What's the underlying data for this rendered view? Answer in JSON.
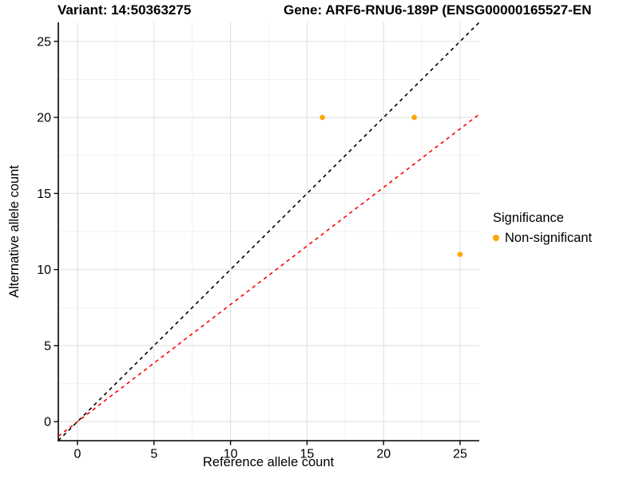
{
  "header": {
    "title_left": "Variant: 14:50363275",
    "title_right": "Gene: ARF6-RNU6-189P (ENSG00000165527-EN"
  },
  "chart_data": {
    "type": "scatter",
    "xlabel": "Reference allele count",
    "ylabel": "Alternative allele count",
    "xlim": [
      -1.25,
      26.25
    ],
    "ylim": [
      -1.25,
      26.25
    ],
    "x_ticks": [
      0,
      5,
      10,
      15,
      20,
      25
    ],
    "y_ticks": [
      0,
      5,
      10,
      15,
      20,
      25
    ],
    "x_minor_ticks": [
      2.5,
      7.5,
      12.5,
      17.5,
      22.5
    ],
    "y_minor_ticks": [
      2.5,
      7.5,
      12.5,
      17.5,
      22.5
    ],
    "grid": true,
    "series": [
      {
        "name": "Non-significant",
        "color": "#FFA500",
        "points": [
          {
            "x": 16,
            "y": 20
          },
          {
            "x": 22,
            "y": 20
          },
          {
            "x": 25,
            "y": 11
          }
        ]
      }
    ],
    "reference_lines": [
      {
        "name": "identity-line",
        "slope": 1,
        "intercept": 0,
        "color": "#000000",
        "style": "dashed"
      },
      {
        "name": "expected-ratio-line",
        "slope": 0.77,
        "intercept": 0,
        "color": "#FF0000",
        "style": "dashed"
      }
    ],
    "legend": {
      "title": "Significance",
      "position": "right",
      "items": [
        {
          "label": "Non-significant",
          "color": "#FFA500"
        }
      ]
    },
    "colors": {
      "grid_major": "#E4E4E4",
      "grid_minor": "#F0F0F0",
      "axis": "#000000"
    }
  }
}
